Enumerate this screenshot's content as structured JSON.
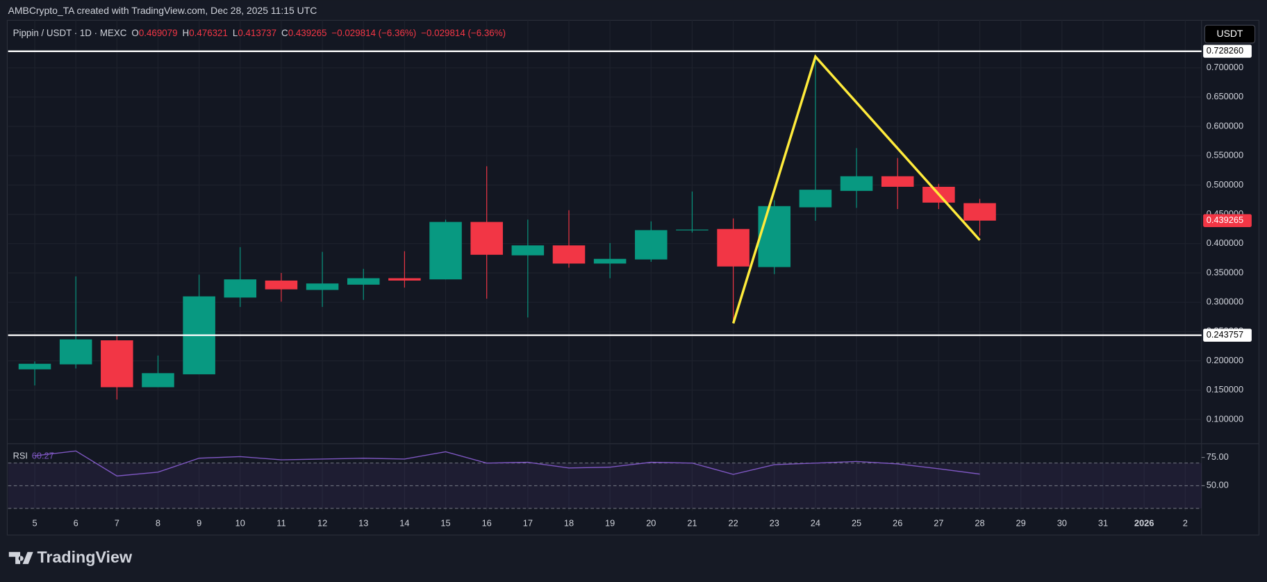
{
  "header": {
    "credit": "AMBCrypto_TA created with TradingView.com, Dec 28, 2025 11:15 UTC",
    "currency_button": "USDT",
    "logo": "TradingView"
  },
  "chart_data": {
    "type": "candlestick",
    "legend": {
      "symbol": "Pippin / USDT · 1D · MEXC",
      "field_labels": [
        "O",
        "H",
        "L",
        "C"
      ],
      "changes": [
        "−0.029814 (−6.36%)",
        "−0.029814 (−6.36%)"
      ]
    },
    "categories": [
      "5",
      "6",
      "7",
      "8",
      "9",
      "10",
      "11",
      "12",
      "13",
      "14",
      "15",
      "16",
      "17",
      "18",
      "19",
      "20",
      "21",
      "22",
      "23",
      "24",
      "25",
      "26",
      "27",
      "28",
      "29",
      "30",
      "31",
      "2026",
      "2"
    ],
    "open": [
      0.1855,
      0.194,
      0.235,
      0.155,
      0.177,
      0.308,
      0.337,
      0.321,
      0.33,
      0.341,
      0.339,
      0.437,
      0.38,
      0.397,
      0.366,
      0.373,
      0.423,
      0.425,
      0.36,
      0.462,
      0.49,
      0.515,
      0.497,
      0.469079,
      null,
      null,
      null,
      null,
      null
    ],
    "high": [
      0.199,
      0.344,
      0.243,
      0.209,
      0.347,
      0.394,
      0.35,
      0.386,
      0.357,
      0.387,
      0.441,
      0.532,
      0.441,
      0.457,
      0.401,
      0.438,
      0.489,
      0.443,
      0.474,
      0.717,
      0.563,
      0.546,
      0.502,
      0.476321,
      null,
      null,
      null,
      null,
      null
    ],
    "low": [
      0.158,
      0.187,
      0.134,
      0.155,
      0.177,
      0.292,
      0.301,
      0.292,
      0.304,
      0.325,
      0.339,
      0.306,
      0.274,
      0.359,
      0.341,
      0.369,
      0.419,
      0.268,
      0.348,
      0.439,
      0.461,
      0.459,
      0.459,
      0.413737,
      null,
      null,
      null,
      null,
      null
    ],
    "close": [
      0.195,
      0.2366,
      0.155,
      0.179,
      0.31,
      0.339,
      0.322,
      0.332,
      0.341,
      0.337,
      0.437,
      0.381,
      0.397,
      0.366,
      0.374,
      0.423,
      0.424,
      0.361,
      0.464,
      0.492,
      0.515,
      0.497,
      0.47,
      0.439265,
      null,
      null,
      null,
      null,
      null
    ],
    "up_color": "#089981",
    "down_color": "#f23645",
    "ylim": [
      0.06,
      0.781
    ],
    "yticks": [
      {
        "value": 0.1,
        "label": "0.100000"
      },
      {
        "value": 0.15,
        "label": "0.150000"
      },
      {
        "value": 0.2,
        "label": "0.200000"
      },
      {
        "value": 0.25,
        "label": "0.250000"
      },
      {
        "value": 0.3,
        "label": "0.300000"
      },
      {
        "value": 0.35,
        "label": "0.350000"
      },
      {
        "value": 0.4,
        "label": "0.400000"
      },
      {
        "value": 0.45,
        "label": "0.450000"
      },
      {
        "value": 0.5,
        "label": "0.500000"
      },
      {
        "value": 0.55,
        "label": "0.550000"
      },
      {
        "value": 0.6,
        "label": "0.600000"
      },
      {
        "value": 0.65,
        "label": "0.650000"
      },
      {
        "value": 0.7,
        "label": "0.700000"
      }
    ],
    "grid": true,
    "hlines": [
      {
        "value": 0.72826,
        "label": "0.728260"
      },
      {
        "value": 0.243757,
        "label": "0.243757"
      }
    ],
    "last_price": {
      "value": 0.439265,
      "label": "0.439265"
    },
    "drawing": {
      "color": "#ffeb3b",
      "x": [
        "22",
        "24",
        "28"
      ],
      "y": [
        0.264,
        0.719,
        0.406
      ]
    },
    "rsi": {
      "name": "RSI",
      "color": "#7e57c2",
      "values": [
        76.4,
        80.7,
        58.6,
        62,
        74.3,
        75.7,
        72.9,
        73.6,
        74.3,
        73.6,
        80,
        70,
        70.7,
        65.7,
        66.4,
        70.7,
        70,
        60,
        68.6,
        70,
        71.4,
        69.3,
        65,
        60.27,
        null,
        null,
        null,
        null,
        null
      ],
      "ylim": [
        27.9,
        86.4
      ],
      "yticks": [
        {
          "value": 75,
          "label": "75.00"
        },
        {
          "value": 50,
          "label": "50.00"
        }
      ],
      "levels": [
        70,
        50,
        30
      ]
    }
  }
}
